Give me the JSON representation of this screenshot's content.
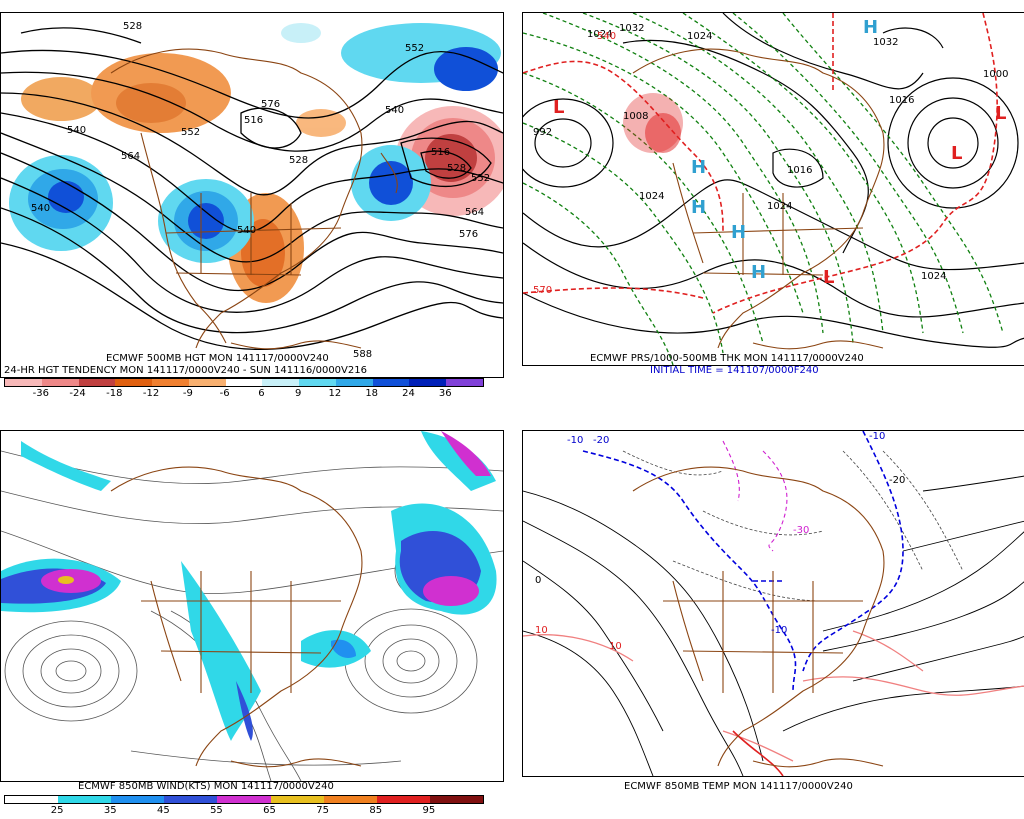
{
  "panels": {
    "top_left": {
      "title": "ECMWF 500MB HGT MON 141117/0000V240",
      "subtitle": "24-HR HGT TENDENCY MON 141117/0000V240 - SUN 141116/0000V216",
      "colorbar_ticks": [
        "-36",
        "-24",
        "-18",
        "-12",
        "-9",
        "-6",
        "6",
        "9",
        "12",
        "18",
        "24",
        "36"
      ],
      "colorbar_colors": [
        "#f7b8b8",
        "#ee8888",
        "#c04040",
        "#e06010",
        "#f08030",
        "#f8b070",
        "#ffffff",
        "#c8f0f8",
        "#60d8f0",
        "#30a8e8",
        "#1050d8",
        "#0020b8",
        "#8040d8"
      ],
      "contour_labels": [
        "540",
        "528",
        "540",
        "552",
        "564",
        "552",
        "576",
        "516",
        "528",
        "540",
        "540",
        "552",
        "564",
        "576",
        "516",
        "528",
        "588"
      ]
    },
    "top_right": {
      "title": "ECMWF PRS/1000-500MB THK MON 141117/0000V240",
      "subtitle": "INITIAL TIME = 141107/0000F240",
      "pressure_labels": [
        "1024",
        "1032",
        "1024",
        "1000",
        "992",
        "1008",
        "1016",
        "1024",
        "1024",
        "1016",
        "1024",
        "1032"
      ],
      "thickness_labels": [
        "540",
        "570"
      ],
      "high_low_marks": [
        "L",
        "L",
        "H",
        "H",
        "H",
        "H",
        "L",
        "L",
        "H"
      ]
    },
    "bottom_left": {
      "title": "ECMWF 850MB WIND(KTS) MON 141117/0000V240",
      "colorbar_ticks": [
        "25",
        "35",
        "45",
        "55",
        "65",
        "75",
        "85",
        "95"
      ],
      "colorbar_colors": [
        "#ffffff",
        "#30d8e8",
        "#2090f0",
        "#3050d8",
        "#d030d0",
        "#e8c020",
        "#f08020",
        "#e02020",
        "#801010"
      ]
    },
    "bottom_right": {
      "title": "ECMWF 850MB TEMP MON 141117/0000V240",
      "contour_labels": [
        "-10",
        "-20",
        "-10",
        "-20",
        "-30",
        "0",
        "10",
        "-10",
        "10"
      ]
    }
  }
}
